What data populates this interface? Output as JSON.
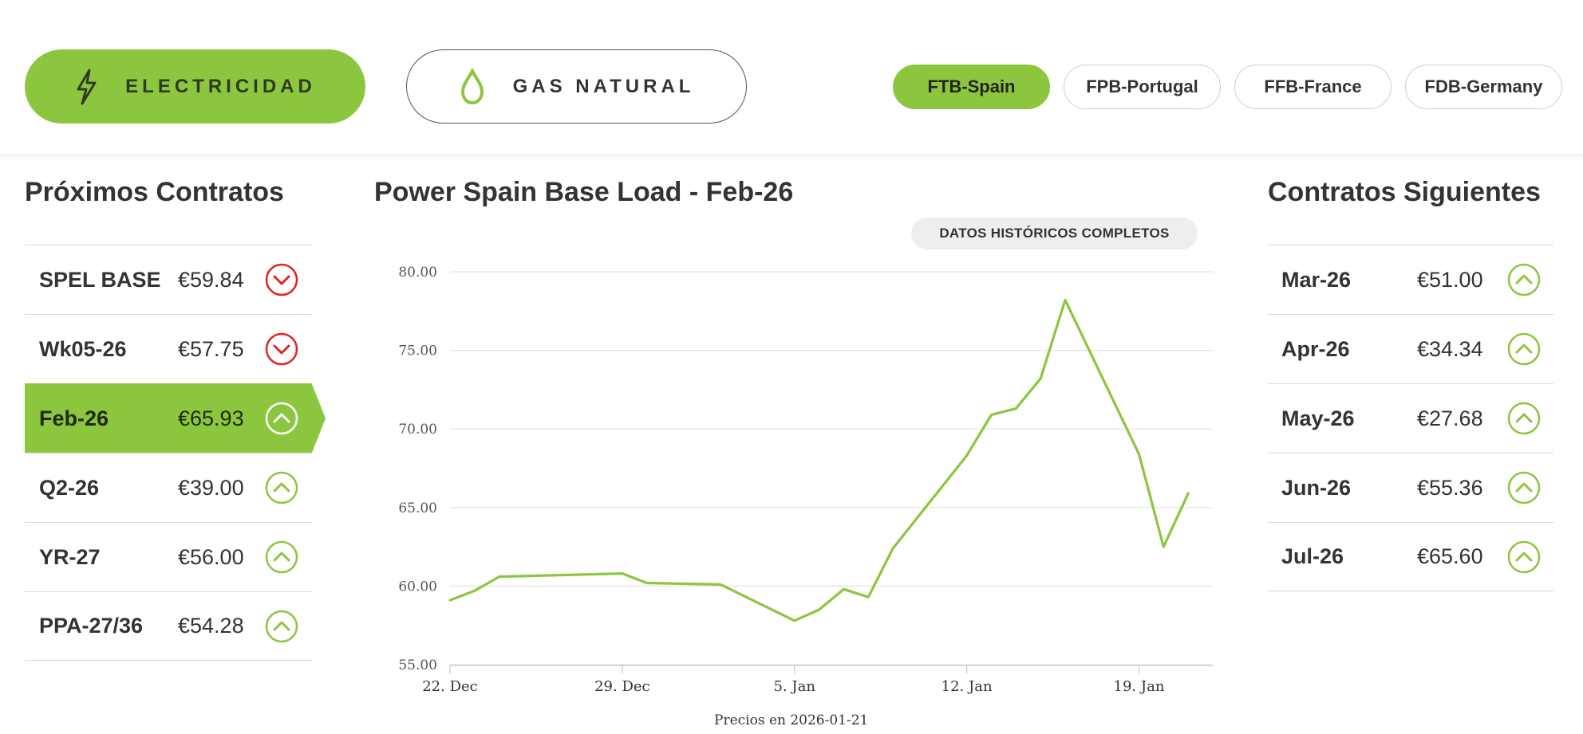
{
  "commodities": [
    {
      "label": "ELECTRICIDAD",
      "icon": "lightning-bolt-icon",
      "active": true
    },
    {
      "label": "GAS NATURAL",
      "icon": "gas-drop-icon",
      "active": false
    }
  ],
  "markets": [
    {
      "label": "FTB-Spain",
      "active": true
    },
    {
      "label": "FPB-Portugal",
      "active": false
    },
    {
      "label": "FFB-France",
      "active": false
    },
    {
      "label": "FDB-Germany",
      "active": false
    }
  ],
  "left_panel": {
    "title": "Próximos Contratos",
    "contracts": [
      {
        "name": "SPEL BASE",
        "price": "€59.84",
        "trend": "down",
        "selected": false
      },
      {
        "name": "Wk05-26",
        "price": "€57.75",
        "trend": "down",
        "selected": false
      },
      {
        "name": "Feb-26",
        "price": "€65.93",
        "trend": "up",
        "selected": true
      },
      {
        "name": "Q2-26",
        "price": "€39.00",
        "trend": "up",
        "selected": false
      },
      {
        "name": "YR-27",
        "price": "€56.00",
        "trend": "up",
        "selected": false
      },
      {
        "name": "PPA-27/36",
        "price": "€54.28",
        "trend": "up",
        "selected": false
      }
    ]
  },
  "right_panel": {
    "title": "Contratos Siguientes",
    "contracts": [
      {
        "name": "Mar-26",
        "price": "€51.00",
        "trend": "up"
      },
      {
        "name": "Apr-26",
        "price": "€34.34",
        "trend": "up"
      },
      {
        "name": "May-26",
        "price": "€27.68",
        "trend": "up"
      },
      {
        "name": "Jun-26",
        "price": "€55.36",
        "trend": "up"
      },
      {
        "name": "Jul-26",
        "price": "€65.60",
        "trend": "up"
      }
    ]
  },
  "chart": {
    "title": "Power Spain Base Load - Feb-26",
    "history_button": "DATOS HISTÓRICOS COMPLETOS",
    "price_date": "Precios en 2026-01-21"
  },
  "colors": {
    "accent": "#8cc63f",
    "down": "#e02424",
    "up": "#8cc63f"
  },
  "chart_data": {
    "type": "line",
    "title": "Power Spain Base Load - Feb-26",
    "xlabel": "",
    "ylabel": "",
    "x_tick_labels": [
      "22. Dec",
      "29. Dec",
      "5. Jan",
      "12. Jan",
      "19. Jan"
    ],
    "y_tick_labels": [
      "55.00",
      "60.00",
      "65.00",
      "70.00",
      "75.00",
      "80.00"
    ],
    "ylim": [
      55,
      80
    ],
    "grid": true,
    "series": [
      {
        "points": [
          [
            "2025-12-22",
            59.1
          ],
          [
            "2025-12-23",
            59.7
          ],
          [
            "2025-12-24",
            60.6
          ],
          [
            "2025-12-29",
            60.8
          ],
          [
            "2025-12-30",
            60.2
          ],
          [
            "2026-01-02",
            60.1
          ],
          [
            "2026-01-05",
            57.8
          ],
          [
            "2026-01-06",
            58.5
          ],
          [
            "2026-01-07",
            59.8
          ],
          [
            "2026-01-08",
            59.3
          ],
          [
            "2026-01-09",
            62.4
          ],
          [
            "2026-01-12",
            68.3
          ],
          [
            "2026-01-13",
            70.9
          ],
          [
            "2026-01-14",
            71.3
          ],
          [
            "2026-01-15",
            73.2
          ],
          [
            "2026-01-16",
            78.2
          ],
          [
            "2026-01-19",
            68.4
          ],
          [
            "2026-01-20",
            62.5
          ],
          [
            "2026-01-21",
            65.9
          ]
        ]
      }
    ]
  }
}
